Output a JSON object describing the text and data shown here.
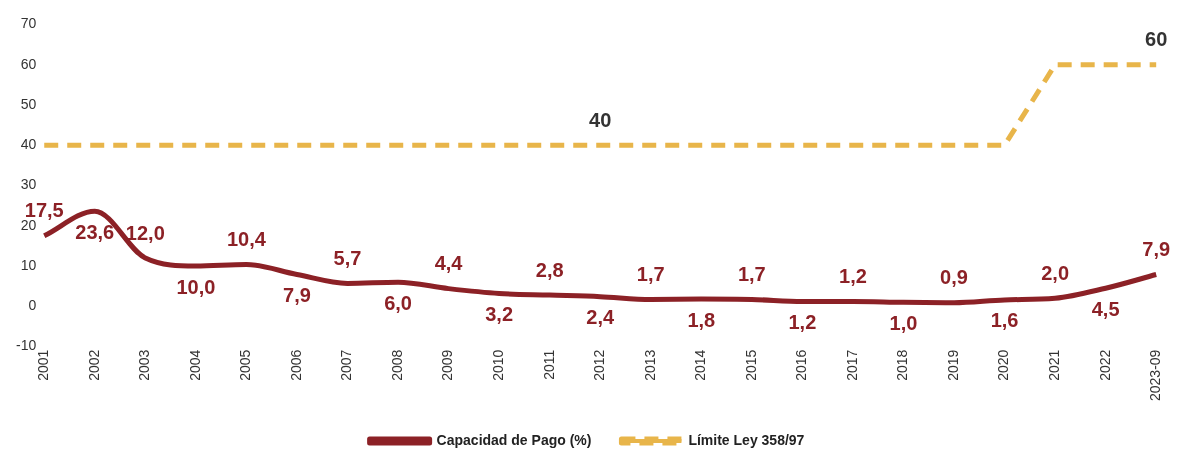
{
  "chart_data": {
    "type": "line",
    "categories": [
      "2001",
      "2002",
      "2003",
      "2004",
      "2005",
      "2006",
      "2007",
      "2008",
      "2009",
      "2010",
      "2011",
      "2012",
      "2013",
      "2014",
      "2015",
      "2016",
      "2017",
      "2018",
      "2019",
      "2020",
      "2021",
      "2022",
      "2023-09"
    ],
    "series": [
      {
        "name": "Capacidad de Pago (%)",
        "color": "#8c2126",
        "line_style": "solid",
        "values": [
          17.5,
          23.6,
          12.0,
          10.0,
          10.4,
          7.9,
          5.7,
          6.0,
          4.4,
          3.2,
          2.8,
          2.4,
          1.7,
          1.8,
          1.7,
          1.2,
          1.2,
          1.0,
          0.9,
          1.6,
          2.0,
          4.5,
          7.9
        ],
        "value_labels": [
          "17,5",
          "23,6",
          "12,0",
          "10,0",
          "10,4",
          "7,9",
          "5,7",
          "6,0",
          "4,4",
          "3,2",
          "2,8",
          "2,4",
          "1,7",
          "1,8",
          "1,7",
          "1,2",
          "1,2",
          "1,0",
          "0,9",
          "1,6",
          "2,0",
          "4,5",
          "7,9"
        ]
      },
      {
        "name": "Límite Ley 358/97",
        "color": "#e8b54a",
        "line_style": "dashed",
        "values": [
          40,
          40,
          40,
          40,
          40,
          40,
          40,
          40,
          40,
          40,
          40,
          40,
          40,
          40,
          40,
          40,
          40,
          40,
          40,
          40,
          60,
          60,
          60
        ],
        "value_labels": [
          null,
          null,
          null,
          null,
          null,
          null,
          null,
          null,
          null,
          null,
          null,
          "40",
          null,
          null,
          null,
          null,
          null,
          null,
          null,
          null,
          null,
          null,
          "60"
        ]
      }
    ],
    "ylim": [
      -10,
      70
    ],
    "yticks": [
      -10,
      0,
      10,
      20,
      30,
      40,
      50,
      60,
      70
    ],
    "grid": false,
    "legend": "bottom",
    "marker": "none"
  }
}
